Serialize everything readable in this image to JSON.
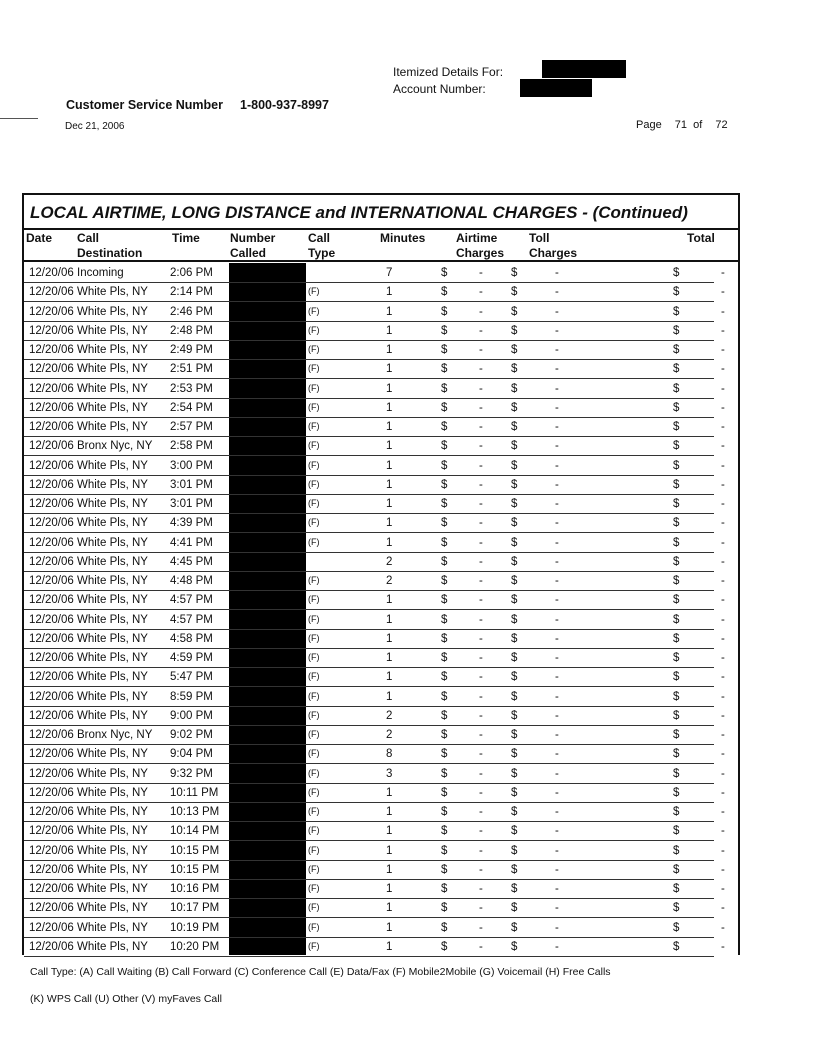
{
  "header": {
    "itemized_label": "Itemized Details For:",
    "account_label": "Account Number:",
    "customer_service_label": "Customer Service Number",
    "customer_service_number": "1-800-937-8997",
    "date": "Dec 21, 2006",
    "page_label": "Page",
    "page_current": "71",
    "page_of": "of",
    "page_total": "72"
  },
  "table": {
    "title": "LOCAL AIRTIME, LONG DISTANCE and INTERNATIONAL CHARGES  - (Continued)",
    "columns": {
      "date": "Date",
      "destination": [
        "Call",
        "Destination"
      ],
      "time": "Time",
      "number": [
        "Number",
        "Called"
      ],
      "call_type": [
        "Call",
        "Type"
      ],
      "minutes": "Minutes",
      "airtime": [
        "Airtime",
        "Charges"
      ],
      "toll": [
        "Toll",
        "Charges"
      ],
      "total": "Total"
    },
    "currency": "$",
    "empty_charge": "-",
    "rows": [
      {
        "date": "12/20/06",
        "dest": "Incoming",
        "time": "2:06 PM",
        "type": "",
        "min": "7"
      },
      {
        "date": "12/20/06",
        "dest": "White Pls, NY",
        "time": "2:14 PM",
        "type": "(F)",
        "min": "1"
      },
      {
        "date": "12/20/06",
        "dest": "White Pls, NY",
        "time": "2:46 PM",
        "type": "(F)",
        "min": "1"
      },
      {
        "date": "12/20/06",
        "dest": "White Pls, NY",
        "time": "2:48 PM",
        "type": "(F)",
        "min": "1"
      },
      {
        "date": "12/20/06",
        "dest": "White Pls, NY",
        "time": "2:49 PM",
        "type": "(F)",
        "min": "1"
      },
      {
        "date": "12/20/06",
        "dest": "White Pls, NY",
        "time": "2:51 PM",
        "type": "(F)",
        "min": "1"
      },
      {
        "date": "12/20/06",
        "dest": "White Pls, NY",
        "time": "2:53 PM",
        "type": "(F)",
        "min": "1"
      },
      {
        "date": "12/20/06",
        "dest": "White Pls, NY",
        "time": "2:54 PM",
        "type": "(F)",
        "min": "1"
      },
      {
        "date": "12/20/06",
        "dest": "White Pls, NY",
        "time": "2:57 PM",
        "type": "(F)",
        "min": "1"
      },
      {
        "date": "12/20/06",
        "dest": "Bronx Nyc, NY",
        "time": "2:58 PM",
        "type": "(F)",
        "min": "1"
      },
      {
        "date": "12/20/06",
        "dest": "White Pls, NY",
        "time": "3:00 PM",
        "type": "(F)",
        "min": "1"
      },
      {
        "date": "12/20/06",
        "dest": "White Pls, NY",
        "time": "3:01 PM",
        "type": "(F)",
        "min": "1"
      },
      {
        "date": "12/20/06",
        "dest": "White Pls, NY",
        "time": "3:01 PM",
        "type": "(F)",
        "min": "1"
      },
      {
        "date": "12/20/06",
        "dest": "White Pls, NY",
        "time": "4:39 PM",
        "type": "(F)",
        "min": "1"
      },
      {
        "date": "12/20/06",
        "dest": "White Pls, NY",
        "time": "4:41 PM",
        "type": "(F)",
        "min": "1"
      },
      {
        "date": "12/20/06",
        "dest": "White Pls, NY",
        "time": "4:45 PM",
        "type": "",
        "min": "2"
      },
      {
        "date": "12/20/06",
        "dest": "White Pls, NY",
        "time": "4:48 PM",
        "type": "(F)",
        "min": "2"
      },
      {
        "date": "12/20/06",
        "dest": "White Pls, NY",
        "time": "4:57 PM",
        "type": "(F)",
        "min": "1"
      },
      {
        "date": "12/20/06",
        "dest": "White Pls, NY",
        "time": "4:57 PM",
        "type": "(F)",
        "min": "1"
      },
      {
        "date": "12/20/06",
        "dest": "White Pls, NY",
        "time": "4:58 PM",
        "type": "(F)",
        "min": "1"
      },
      {
        "date": "12/20/06",
        "dest": "White Pls, NY",
        "time": "4:59 PM",
        "type": "(F)",
        "min": "1"
      },
      {
        "date": "12/20/06",
        "dest": "White Pls, NY",
        "time": "5:47 PM",
        "type": "(F)",
        "min": "1"
      },
      {
        "date": "12/20/06",
        "dest": "White Pls, NY",
        "time": "8:59 PM",
        "type": "(F)",
        "min": "1"
      },
      {
        "date": "12/20/06",
        "dest": "White Pls, NY",
        "time": "9:00 PM",
        "type": "(F)",
        "min": "2"
      },
      {
        "date": "12/20/06",
        "dest": "Bronx Nyc, NY",
        "time": "9:02 PM",
        "type": "(F)",
        "min": "2"
      },
      {
        "date": "12/20/06",
        "dest": "White Pls, NY",
        "time": "9:04 PM",
        "type": "(F)",
        "min": "8"
      },
      {
        "date": "12/20/06",
        "dest": "White Pls, NY",
        "time": "9:32 PM",
        "type": "(F)",
        "min": "3"
      },
      {
        "date": "12/20/06",
        "dest": "White Pls, NY",
        "time": "10:11 PM",
        "type": "(F)",
        "min": "1"
      },
      {
        "date": "12/20/06",
        "dest": "White Pls, NY",
        "time": "10:13 PM",
        "type": "(F)",
        "min": "1"
      },
      {
        "date": "12/20/06",
        "dest": "White Pls, NY",
        "time": "10:14 PM",
        "type": "(F)",
        "min": "1"
      },
      {
        "date": "12/20/06",
        "dest": "White Pls, NY",
        "time": "10:15 PM",
        "type": "(F)",
        "min": "1"
      },
      {
        "date": "12/20/06",
        "dest": "White Pls, NY",
        "time": "10:15 PM",
        "type": "(F)",
        "min": "1"
      },
      {
        "date": "12/20/06",
        "dest": "White Pls, NY",
        "time": "10:16 PM",
        "type": "(F)",
        "min": "1"
      },
      {
        "date": "12/20/06",
        "dest": "White Pls, NY",
        "time": "10:17 PM",
        "type": "(F)",
        "min": "1"
      },
      {
        "date": "12/20/06",
        "dest": "White Pls, NY",
        "time": "10:19 PM",
        "type": "(F)",
        "min": "1"
      },
      {
        "date": "12/20/06",
        "dest": "White Pls, NY",
        "time": "10:20 PM",
        "type": "(F)",
        "min": "1"
      }
    ]
  },
  "footer": {
    "legend_line1": "Call Type: (A) Call Waiting (B) Call Forward (C) Conference Call (E) Data/Fax (F) Mobile2Mobile (G) Voicemail (H) Free Calls",
    "legend_line2": "(K) WPS Call (U) Other (V) myFaves Call"
  }
}
